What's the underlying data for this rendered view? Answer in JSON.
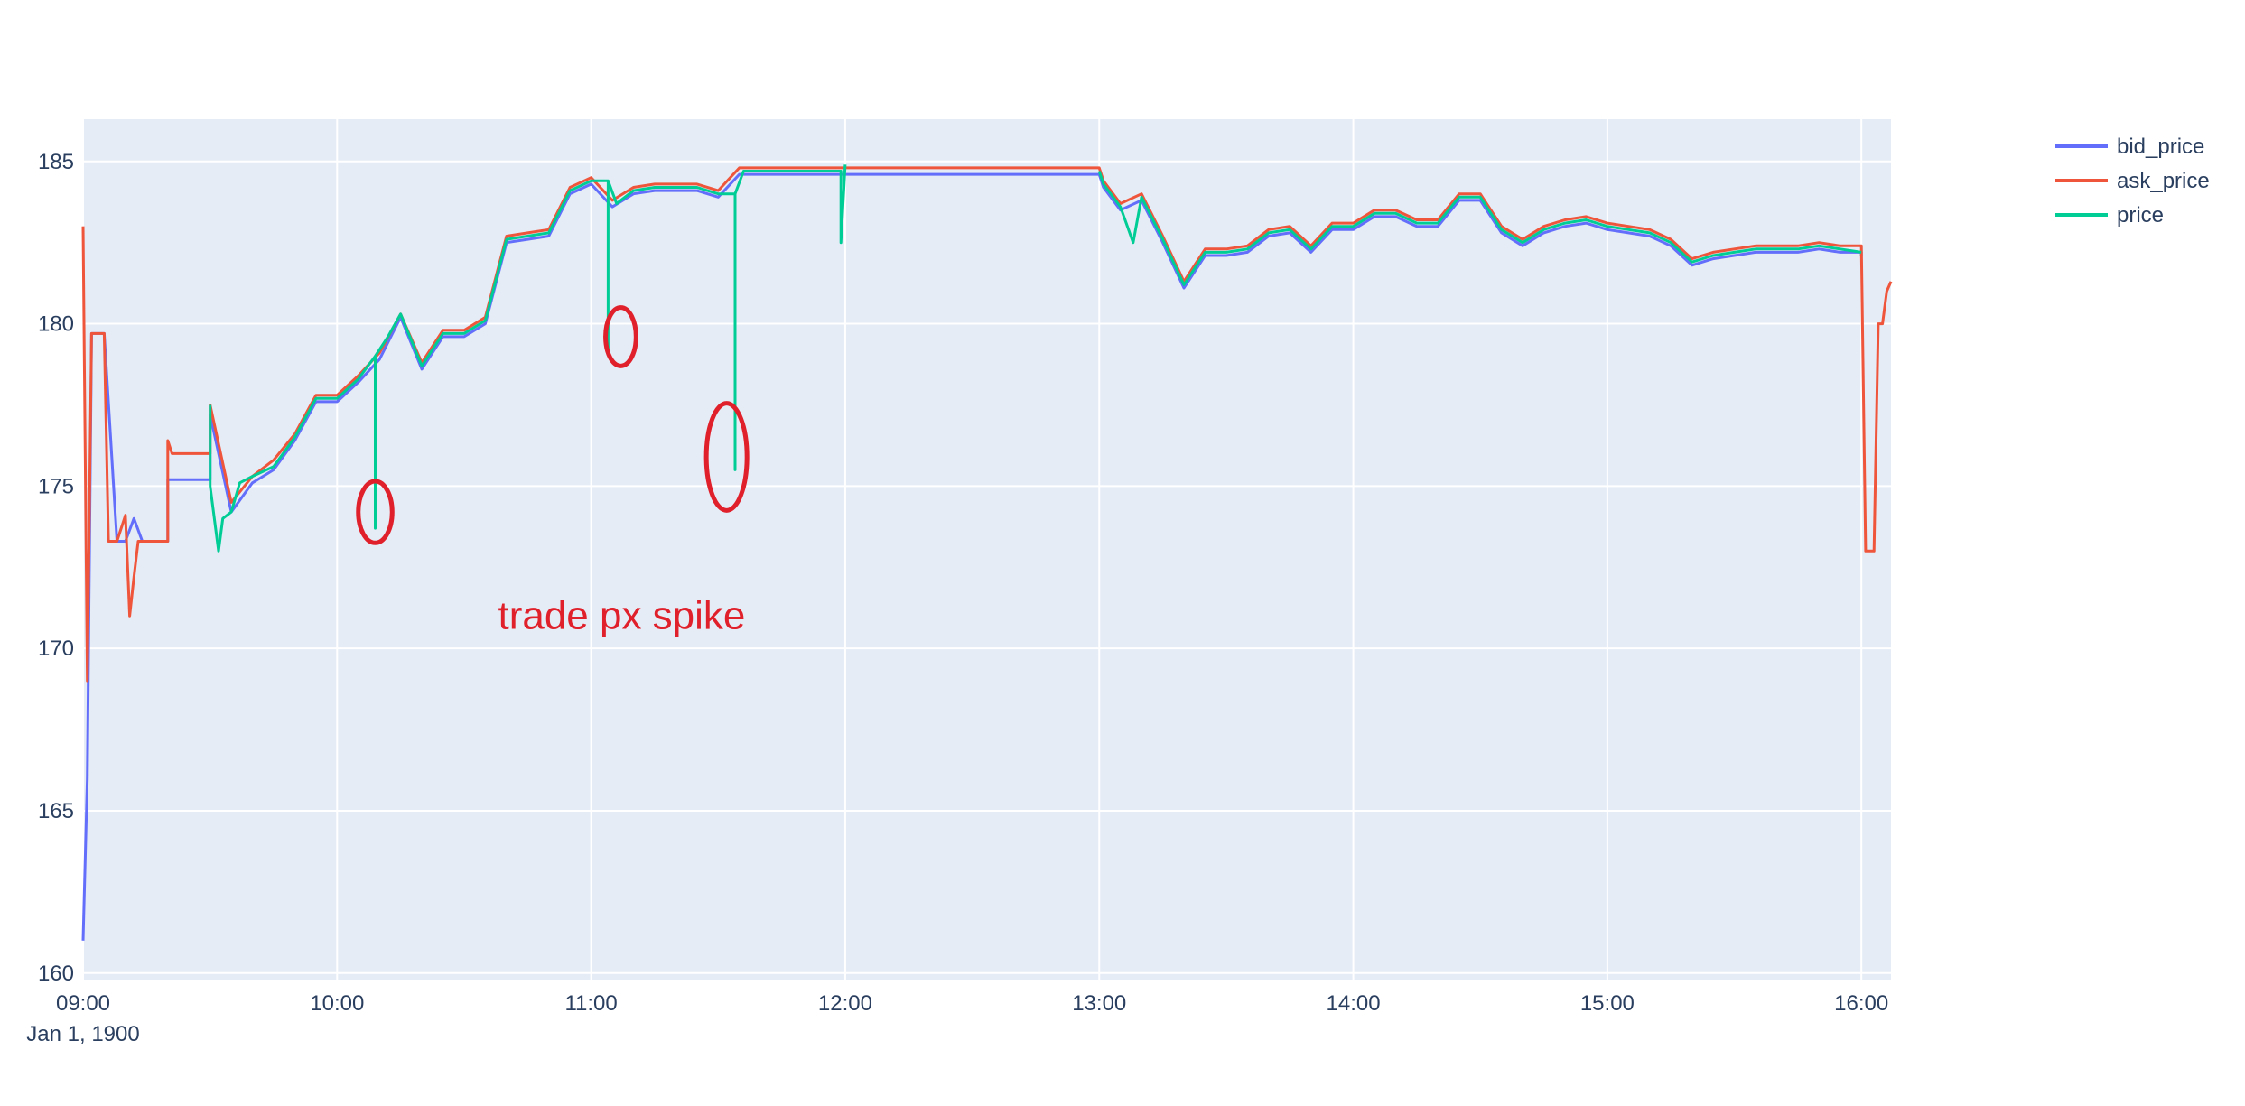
{
  "colors": {
    "plot_bg": "#e5ecf6",
    "grid": "#ffffff",
    "bid_price": "#636efa",
    "ask_price": "#ef553b",
    "price": "#00cc96",
    "annotation": "#e0202a"
  },
  "chart_data": {
    "type": "line",
    "title": "",
    "xlabel": "",
    "ylabel": "",
    "x_unit": "time of day",
    "x_range": [
      "09:00",
      "16:07"
    ],
    "ylim": [
      159.8,
      186.3
    ],
    "grid": true,
    "legend_placement": "top-right",
    "x_tick_labels": [
      "09:00",
      "10:00",
      "11:00",
      "12:00",
      "13:00",
      "14:00",
      "15:00",
      "16:00"
    ],
    "x_tick_sublabel": "Jan 1, 1900",
    "y_ticks": [
      160,
      165,
      170,
      175,
      180,
      185
    ],
    "legend": [
      "bid_price",
      "ask_price",
      "price"
    ],
    "series": [
      {
        "name": "bid_price",
        "x": [
          "09:00",
          "09:01",
          "09:02",
          "09:03",
          "09:05",
          "09:08",
          "09:10",
          "09:12",
          "09:14",
          "09:17",
          "09:20",
          "09:20",
          "09:30",
          "09:30",
          "09:35",
          "09:40",
          "09:45",
          "09:50",
          "09:55",
          "10:00",
          "10:05",
          "10:10",
          "10:15",
          "10:20",
          "10:25",
          "10:30",
          "10:35",
          "10:40",
          "10:45",
          "10:50",
          "10:55",
          "11:00",
          "11:05",
          "11:10",
          "11:15",
          "11:20",
          "11:25",
          "11:30",
          "11:35",
          "11:40",
          "11:45",
          "11:50",
          "11:55",
          "11:58",
          "11:59",
          "13:00",
          "13:01",
          "13:05",
          "13:10",
          "13:15",
          "13:20",
          "13:25",
          "13:30",
          "13:35",
          "13:40",
          "13:45",
          "13:50",
          "13:55",
          "14:00",
          "14:05",
          "14:10",
          "14:15",
          "14:20",
          "14:25",
          "14:30",
          "14:35",
          "14:40",
          "14:45",
          "14:50",
          "14:55",
          "15:00",
          "15:05",
          "15:10",
          "15:15",
          "15:20",
          "15:25",
          "15:30",
          "15:35",
          "15:40",
          "15:45",
          "15:50",
          "15:55",
          "16:00",
          "16:00"
        ],
        "y": [
          161,
          166,
          179.7,
          179.7,
          179.7,
          173.3,
          173.3,
          174,
          173.3,
          173.3,
          173.3,
          175.2,
          175.2,
          177.2,
          174.2,
          175.1,
          175.5,
          176.4,
          177.6,
          177.6,
          178.2,
          178.9,
          180.2,
          178.6,
          179.6,
          179.6,
          180.0,
          182.5,
          182.6,
          182.7,
          184.0,
          184.3,
          183.6,
          184.0,
          184.1,
          184.1,
          184.1,
          183.9,
          184.6,
          184.6,
          184.6,
          184.6,
          184.6,
          184.6,
          184.6,
          184.6,
          184.2,
          183.5,
          183.8,
          182.5,
          181.1,
          182.1,
          182.1,
          182.2,
          182.7,
          182.8,
          182.2,
          182.9,
          182.9,
          183.3,
          183.3,
          183.0,
          183.0,
          183.8,
          183.8,
          182.8,
          182.4,
          182.8,
          183.0,
          183.1,
          182.9,
          182.8,
          182.7,
          182.4,
          181.8,
          182.0,
          182.1,
          182.2,
          182.2,
          182.2,
          182.3,
          182.2,
          182.2,
          182.1
        ]
      },
      {
        "name": "ask_price",
        "x": [
          "09:00",
          "09:01",
          "09:02",
          "09:03",
          "09:05",
          "09:06",
          "09:08",
          "09:10",
          "09:11",
          "09:12",
          "09:13",
          "09:14",
          "09:17",
          "09:20",
          "09:20",
          "09:21",
          "09:24",
          "09:30",
          "09:30",
          "09:35",
          "09:40",
          "09:45",
          "09:50",
          "09:55",
          "10:00",
          "10:05",
          "10:10",
          "10:15",
          "10:20",
          "10:25",
          "10:30",
          "10:35",
          "10:40",
          "10:45",
          "10:50",
          "10:55",
          "11:00",
          "11:05",
          "11:10",
          "11:15",
          "11:20",
          "11:25",
          "11:30",
          "11:35",
          "11:40",
          "11:45",
          "11:50",
          "11:55",
          "11:58",
          "11:59",
          "13:00",
          "13:01",
          "13:05",
          "13:10",
          "13:15",
          "13:20",
          "13:25",
          "13:30",
          "13:35",
          "13:40",
          "13:45",
          "13:50",
          "13:55",
          "14:00",
          "14:05",
          "14:10",
          "14:15",
          "14:20",
          "14:25",
          "14:30",
          "14:35",
          "14:40",
          "14:45",
          "14:50",
          "14:55",
          "15:00",
          "15:05",
          "15:10",
          "15:15",
          "15:20",
          "15:25",
          "15:30",
          "15:35",
          "15:40",
          "15:45",
          "15:50",
          "15:55",
          "16:00",
          "16:01",
          "16:03",
          "16:04",
          "16:05",
          "16:06",
          "16:07"
        ],
        "y": [
          183,
          169,
          179.7,
          179.7,
          179.7,
          173.3,
          173.3,
          174.1,
          171.0,
          172.2,
          173.3,
          173.3,
          173.3,
          173.3,
          176.4,
          176.0,
          176.0,
          176.0,
          177.5,
          174.5,
          175.3,
          175.8,
          176.6,
          177.8,
          177.8,
          178.4,
          179.1,
          180.3,
          178.8,
          179.8,
          179.8,
          180.2,
          182.7,
          182.8,
          182.9,
          184.2,
          184.5,
          183.8,
          184.2,
          184.3,
          184.3,
          184.3,
          184.1,
          184.8,
          184.8,
          184.8,
          184.8,
          184.8,
          184.8,
          184.8,
          184.8,
          184.4,
          183.7,
          184.0,
          182.7,
          181.3,
          182.3,
          182.3,
          182.4,
          182.9,
          183.0,
          182.4,
          183.1,
          183.1,
          183.5,
          183.5,
          183.2,
          183.2,
          184.0,
          184.0,
          183.0,
          182.6,
          183.0,
          183.2,
          183.3,
          183.1,
          183.0,
          182.9,
          182.6,
          182.0,
          182.2,
          182.3,
          182.4,
          182.4,
          182.4,
          182.5,
          182.4,
          182.4,
          173.0,
          173.0,
          180.0,
          180.0,
          181.0,
          181.3
        ]
      },
      {
        "name": "price",
        "x": [
          "09:30",
          "09:30",
          "09:32",
          "09:33",
          "09:35",
          "09:37",
          "09:40",
          "09:45",
          "09:50",
          "09:55",
          "10:00",
          "10:05",
          "10:09",
          "10:09",
          "10:09",
          "10:12",
          "10:15",
          "10:20",
          "10:25",
          "10:30",
          "10:35",
          "10:40",
          "10:45",
          "10:50",
          "10:55",
          "11:00",
          "11:04",
          "11:04",
          "11:04",
          "11:06",
          "11:10",
          "11:15",
          "11:20",
          "11:25",
          "11:30",
          "11:34",
          "11:34",
          "11:34",
          "11:36",
          "11:40",
          "11:45",
          "11:50",
          "11:55",
          "11:58",
          "11:59",
          "11:59",
          "12:00"
        ],
        "y": [
          177.5,
          175.0,
          173.0,
          174.0,
          174.2,
          175.1,
          175.3,
          175.6,
          176.5,
          177.7,
          177.7,
          178.3,
          179.0,
          173.7,
          179.0,
          179.6,
          180.3,
          178.7,
          179.7,
          179.7,
          180.1,
          182.6,
          182.7,
          182.8,
          184.1,
          184.4,
          184.4,
          179.2,
          184.4,
          183.7,
          184.1,
          184.2,
          184.2,
          184.2,
          184.0,
          184.0,
          175.5,
          184.0,
          184.7,
          184.7,
          184.7,
          184.7,
          184.7,
          184.7,
          184.7,
          182.5,
          184.9
        ]
      },
      {
        "name": "price",
        "x": [
          "13:00",
          "13:01",
          "13:05",
          "13:08",
          "13:10",
          "13:15",
          "13:20",
          "13:25",
          "13:30",
          "13:35",
          "13:40",
          "13:45",
          "13:50",
          "13:55",
          "14:00",
          "14:05",
          "14:10",
          "14:15",
          "14:20",
          "14:25",
          "14:30",
          "14:35",
          "14:40",
          "14:45",
          "14:50",
          "14:55",
          "15:00",
          "15:05",
          "15:10",
          "15:15",
          "15:20",
          "15:25",
          "15:30",
          "15:35",
          "15:40",
          "15:45",
          "15:50",
          "15:55",
          "16:00"
        ],
        "y": [
          184.7,
          184.3,
          183.6,
          182.5,
          183.9,
          182.6,
          181.2,
          182.2,
          182.2,
          182.3,
          182.8,
          182.9,
          182.3,
          183.0,
          183.0,
          183.4,
          183.4,
          183.1,
          183.1,
          183.9,
          183.9,
          182.9,
          182.5,
          182.9,
          183.1,
          183.2,
          183.0,
          182.9,
          182.8,
          182.5,
          181.9,
          182.1,
          182.2,
          182.3,
          182.3,
          182.3,
          182.4,
          182.3,
          182.2
        ]
      }
    ],
    "annotations": [
      {
        "type": "text",
        "text": "trade px spike",
        "x": "10:38",
        "y": 170.6
      },
      {
        "type": "circle",
        "x": "10:09",
        "y": 174.2,
        "x_radius_min": 4.0,
        "y_radius": 0.95
      },
      {
        "type": "circle",
        "x": "11:07",
        "y": 179.6,
        "x_radius_min": 3.6,
        "y_radius": 0.9
      },
      {
        "type": "circle",
        "x": "11:32",
        "y": 175.9,
        "x_radius_min": 4.8,
        "y_radius": 1.65
      }
    ]
  }
}
